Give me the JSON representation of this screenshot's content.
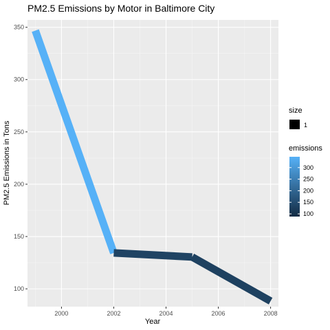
{
  "chart_data": {
    "type": "line",
    "title": "PM2.5 Emissions by Motor in Baltimore City",
    "xlabel": "Year",
    "ylabel": "PM2.5 Emissions in Tons",
    "xlim": [
      1998.7,
      2008.3
    ],
    "ylim": [
      83,
      357
    ],
    "x_ticks": [
      2000,
      2002,
      2004,
      2006,
      2008
    ],
    "y_ticks": [
      100,
      150,
      200,
      250,
      300,
      350
    ],
    "x": [
      1999,
      2002,
      2005,
      2008
    ],
    "y": [
      346.82,
      134.31,
      130.43,
      88.28
    ],
    "grid": true,
    "legend": {
      "position": "right",
      "size": {
        "title": "size",
        "entries": [
          "1"
        ]
      },
      "emissions": {
        "title": "emissions",
        "ticks": [
          100,
          150,
          200,
          250,
          300
        ],
        "range": [
          88.28,
          346.82
        ],
        "low_color": "#132b43",
        "high_color": "#56b1f7"
      }
    }
  }
}
